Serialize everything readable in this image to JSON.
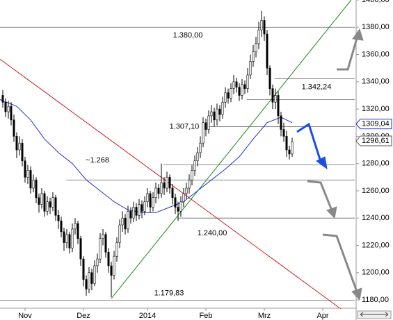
{
  "chart_data": {
    "type": "candlestick",
    "xlim": [
      -1,
      126.5
    ],
    "ylim": [
      1173.9,
      1400
    ],
    "xticks": [
      {
        "value": 8,
        "label": "Nov"
      },
      {
        "value": 29,
        "label": "Dez"
      },
      {
        "value": 52,
        "label": "2014"
      },
      {
        "value": 73,
        "label": "Feb"
      },
      {
        "value": 94,
        "label": "Mrz"
      },
      {
        "value": 115,
        "label": "Apr"
      }
    ],
    "yticks": [
      {
        "value": 1400,
        "label": "1400,00"
      },
      {
        "value": 1380,
        "label": "1380,00"
      },
      {
        "value": 1360,
        "label": "1360,00"
      },
      {
        "value": 1340,
        "label": "1340,00"
      },
      {
        "value": 1320,
        "label": "1320,00"
      },
      {
        "value": 1300,
        "label": "1300,00"
      },
      {
        "value": 1280,
        "label": "1280,00"
      },
      {
        "value": 1260,
        "label": "1260,00"
      },
      {
        "value": 1240,
        "label": "1240,00"
      },
      {
        "value": 1220,
        "label": "1220,00"
      },
      {
        "value": 1200,
        "label": "1200,00"
      },
      {
        "value": 1180,
        "label": "1180,00"
      }
    ],
    "up_color": "#ffffff",
    "down_color": "#000000",
    "open": [
      1330,
      1325,
      1318,
      1322,
      1312,
      1300,
      1290,
      1295,
      1282,
      1270,
      1275,
      1262,
      1268,
      1255,
      1250,
      1258,
      1245,
      1252,
      1248,
      1255,
      1242,
      1238,
      1230,
      1222,
      1228,
      1218,
      1232,
      1236,
      1225,
      1210,
      1195,
      1188,
      1200,
      1192,
      1205,
      1210,
      1225,
      1228,
      1215,
      1205,
      1198,
      1212,
      1222,
      1235,
      1240,
      1232,
      1245,
      1240,
      1248,
      1242,
      1250,
      1245,
      1252,
      1258,
      1248,
      1255,
      1262,
      1258,
      1266,
      1262,
      1270,
      1262,
      1255,
      1248,
      1245,
      1252,
      1258,
      1262,
      1268,
      1275,
      1282,
      1288,
      1295,
      1310,
      1305,
      1315,
      1318,
      1312,
      1320,
      1316,
      1325,
      1332,
      1328,
      1335,
      1340,
      1336,
      1330,
      1338,
      1335,
      1345,
      1355,
      1362,
      1368,
      1378,
      1385,
      1375,
      1350,
      1335,
      1325,
      1330,
      1315,
      1305,
      1300,
      1290,
      1287
    ],
    "high": [
      1334,
      1328,
      1326,
      1325,
      1316,
      1303,
      1300,
      1298,
      1285,
      1279,
      1278,
      1272,
      1270,
      1258,
      1262,
      1260,
      1256,
      1255,
      1259,
      1257,
      1246,
      1241,
      1233,
      1232,
      1230,
      1236,
      1240,
      1238,
      1227,
      1212,
      1198,
      1204,
      1203,
      1209,
      1214,
      1229,
      1232,
      1230,
      1218,
      1208,
      1216,
      1226,
      1239,
      1245,
      1243,
      1249,
      1248,
      1252,
      1251,
      1254,
      1253,
      1256,
      1262,
      1260,
      1259,
      1266,
      1265,
      1280,
      1270,
      1274,
      1272,
      1265,
      1258,
      1252,
      1256,
      1262,
      1266,
      1272,
      1279,
      1286,
      1292,
      1300,
      1314,
      1313,
      1319,
      1323,
      1321,
      1324,
      1323,
      1329,
      1336,
      1335,
      1339,
      1345,
      1343,
      1339,
      1342,
      1341,
      1350,
      1360,
      1367,
      1373,
      1384,
      1392,
      1388,
      1378,
      1352,
      1338,
      1335,
      1333,
      1318,
      1310,
      1304,
      1293,
      1299
    ],
    "low": [
      1321,
      1314,
      1313,
      1308,
      1296,
      1284,
      1286,
      1278,
      1266,
      1265,
      1258,
      1259,
      1251,
      1244,
      1247,
      1241,
      1242,
      1243,
      1245,
      1238,
      1232,
      1226,
      1216,
      1218,
      1214,
      1215,
      1228,
      1221,
      1205,
      1190,
      1183,
      1185,
      1187,
      1190,
      1200,
      1207,
      1220,
      1211,
      1200,
      1182,
      1195,
      1208,
      1218,
      1230,
      1228,
      1229,
      1236,
      1237,
      1238,
      1239,
      1240,
      1242,
      1248,
      1244,
      1245,
      1251,
      1254,
      1255,
      1257,
      1259,
      1258,
      1250,
      1243,
      1238,
      1241,
      1248,
      1254,
      1258,
      1264,
      1271,
      1278,
      1284,
      1292,
      1300,
      1302,
      1310,
      1307,
      1308,
      1311,
      1313,
      1321,
      1324,
      1325,
      1331,
      1332,
      1326,
      1327,
      1331,
      1332,
      1342,
      1351,
      1358,
      1364,
      1373,
      1370,
      1345,
      1330,
      1320,
      1320,
      1309,
      1300,
      1296,
      1285,
      1283,
      1285
    ],
    "close": [
      1325,
      1318,
      1322,
      1312,
      1300,
      1290,
      1295,
      1282,
      1270,
      1275,
      1262,
      1268,
      1255,
      1250,
      1258,
      1245,
      1252,
      1248,
      1255,
      1242,
      1238,
      1230,
      1222,
      1228,
      1218,
      1232,
      1236,
      1225,
      1210,
      1195,
      1188,
      1200,
      1192,
      1205,
      1210,
      1225,
      1228,
      1215,
      1205,
      1198,
      1212,
      1222,
      1235,
      1240,
      1232,
      1245,
      1240,
      1248,
      1242,
      1250,
      1245,
      1252,
      1258,
      1248,
      1255,
      1262,
      1258,
      1266,
      1262,
      1270,
      1262,
      1255,
      1248,
      1245,
      1252,
      1258,
      1262,
      1268,
      1275,
      1282,
      1288,
      1295,
      1310,
      1305,
      1315,
      1318,
      1312,
      1320,
      1316,
      1325,
      1332,
      1328,
      1335,
      1340,
      1336,
      1330,
      1338,
      1335,
      1345,
      1355,
      1362,
      1368,
      1378,
      1385,
      1375,
      1350,
      1335,
      1325,
      1330,
      1315,
      1305,
      1300,
      1290,
      1287,
      1296
    ],
    "moving_average": {
      "color": "#1f2fd0",
      "x": [
        -1,
        5,
        10,
        15,
        20,
        25,
        30,
        35,
        40,
        45,
        50,
        55,
        60,
        65,
        70,
        75,
        80,
        85,
        90,
        95,
        100,
        104
      ],
      "values": [
        1327,
        1322,
        1312,
        1298,
        1288,
        1280,
        1268,
        1260,
        1252,
        1246,
        1244,
        1244,
        1248,
        1252,
        1260,
        1268,
        1276,
        1285,
        1298,
        1310,
        1314,
        1310
      ]
    },
    "trendlines": [
      {
        "color": "#d01818",
        "points": [
          {
            "x": -1,
            "y": 1356.6
          },
          {
            "x": 121.5,
            "y": 1173.4
          }
        ]
      },
      {
        "color": "#178a17",
        "points": [
          {
            "x": 39,
            "y": 1181
          },
          {
            "x": 125.2,
            "y": 1400
          }
        ]
      }
    ],
    "levels": [
      {
        "value": 1380,
        "start": -1,
        "label": "1.380,00"
      },
      {
        "value": 1342.24,
        "start": 97.75,
        "label": "1.342,24"
      },
      {
        "value": 1327,
        "start": 87.75
      },
      {
        "value": 1307.1,
        "start": 74,
        "label": "1.307,10"
      },
      {
        "value": 1279,
        "start": 57.75
      },
      {
        "value": 1268,
        "start": 22.75,
        "label": "~1.268"
      },
      {
        "value": 1240,
        "start": 62.75,
        "label": "1.240,00"
      },
      {
        "value": 1179.83,
        "start": -1,
        "label": "1.179,83"
      }
    ],
    "price_tags": [
      {
        "value": 1309.04,
        "label": "1309,04",
        "color": "#1f2fd0"
      },
      {
        "value": 1296.61,
        "label": "1296,61",
        "color": "#555555"
      }
    ]
  }
}
